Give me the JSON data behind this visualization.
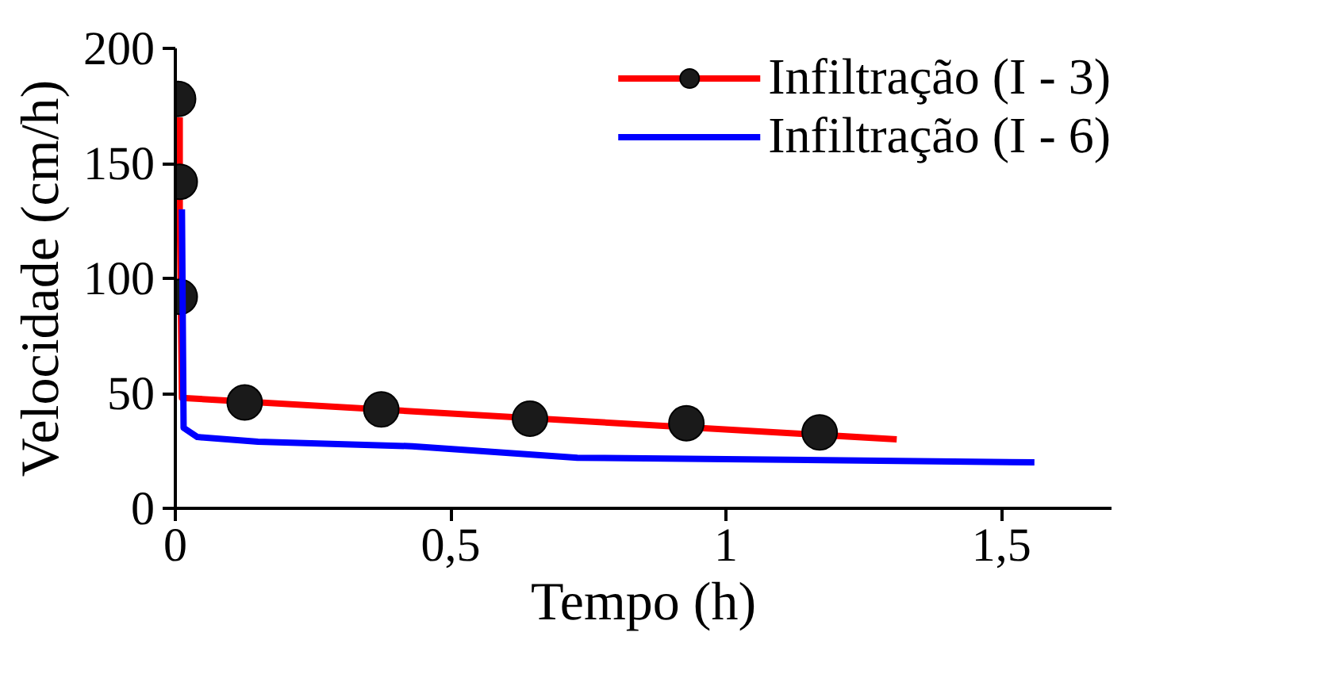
{
  "chart_data": {
    "type": "line",
    "xlabel": "Tempo (h)",
    "ylabel": "Velocidade (cm/h)",
    "xlim": [
      0,
      1.7
    ],
    "ylim": [
      0,
      200
    ],
    "xticks": [
      {
        "value": 0,
        "label": "0"
      },
      {
        "value": 0.5,
        "label": "0,5"
      },
      {
        "value": 1,
        "label": "1"
      },
      {
        "value": 1.5,
        "label": "1,5"
      }
    ],
    "yticks": [
      0,
      50,
      100,
      150,
      200
    ],
    "grid": false,
    "legend": "top right",
    "series": [
      {
        "name": "Infiltração (I - 3)",
        "color": "#ff0000",
        "x": [
          0.008,
          0.008,
          0.012,
          1.31
        ],
        "values": [
          170,
          130,
          48,
          30
        ]
      },
      {
        "color": "#1a1a1a",
        "type": "scatter",
        "marker": "circle",
        "x": [
          0.005,
          0.008,
          0.008,
          0.126,
          0.374,
          0.644,
          0.928,
          1.17
        ],
        "values": [
          178,
          142,
          92,
          46,
          43,
          39,
          37,
          33
        ]
      },
      {
        "name": "Infiltração (I - 6)",
        "color": "#0000ff",
        "x": [
          0.012,
          0.015,
          0.04,
          0.15,
          0.43,
          0.73,
          1.56
        ],
        "values": [
          130,
          35,
          31,
          29,
          27,
          22,
          20
        ]
      }
    ]
  }
}
